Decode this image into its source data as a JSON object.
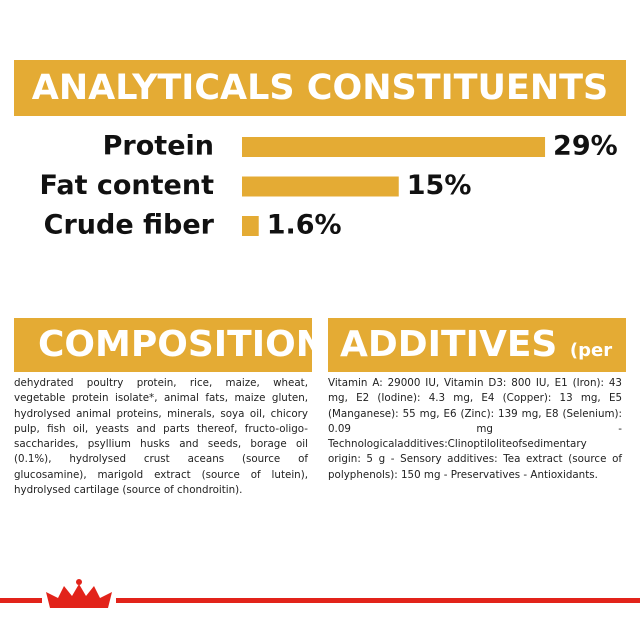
{
  "chart_data": {
    "type": "bar",
    "title": "ANALYTICALS CONSTITUENTS",
    "categories": [
      "Protein",
      "Fat content",
      "Crude fiber"
    ],
    "values": [
      29,
      15,
      1.6
    ],
    "value_labels": [
      "29%",
      "15%",
      "1.6%"
    ],
    "color": "#e4ab34"
  },
  "composition": {
    "title": "COMPOSITION",
    "text": "dehydrated poultry protein, rice, maize, wheat, vegetable protein isolate*, animal fats, maize gluten, hydrolysed animal proteins, minerals, soya oil, chicory pulp, fish oil, yeasts and parts thereof, fructo-oligo-saccharides, psyllium husks and seeds, borage oil (0.1%), hydrolysed crust aceans (source of glucosamine), marigold extract (source of lutein), hydrolysed cartilage (source of chondroitin)."
  },
  "additives": {
    "title": "ADDITIVES",
    "unit": "(per kg)",
    "text": "Vitamin A: 29000 IU, Vitamin D3: 800 IU, E1 (Iron): 43 mg, E2 (Iodine): 4.3 mg, E4 (Copper): 13 mg, E5 (Manganese): 55 mg, E6 (Zinc): 139 mg, E8 (Selenium): 0.09 mg - Technologicaladditives:Clinoptiloliteofsedimentary origin: 5 g - Sensory additives: Tea extract (source of polyphenols): 150 mg - Preservatives - Antioxidants."
  }
}
